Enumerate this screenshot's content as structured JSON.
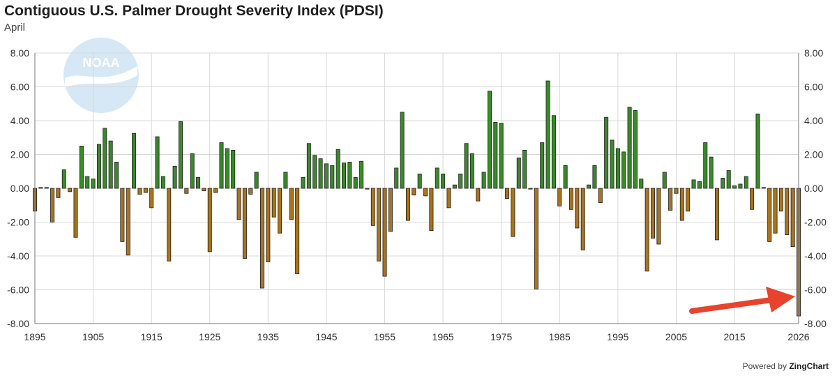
{
  "chart_data": {
    "type": "bar",
    "title": "Contiguous U.S. Palmer Drought Severity Index (PDSI)",
    "subtitle": "April",
    "ylim": [
      -8,
      8
    ],
    "y_ticks": [
      "8.00",
      "6.00",
      "4.00",
      "2.00",
      "0.00",
      "-2.00",
      "-4.00",
      "-6.00",
      "-8.00"
    ],
    "x_ticks": [
      "1895",
      "1905",
      "1915",
      "1925",
      "1935",
      "1945",
      "1955",
      "1965",
      "1975",
      "1985",
      "1995",
      "2005",
      "2015",
      "2026"
    ],
    "grid": true,
    "colors": {
      "positive": "#3a8a2a",
      "negative": "#a8741f",
      "arrow": "#e8432d",
      "logo": "#d6e8f6"
    },
    "start_year": 1895,
    "values": [
      -1.35,
      0.05,
      0.05,
      -2.0,
      -0.55,
      1.1,
      -0.2,
      -2.9,
      2.5,
      0.7,
      0.55,
      2.6,
      3.55,
      2.8,
      1.55,
      -3.15,
      -3.95,
      3.25,
      -0.35,
      -0.25,
      -1.15,
      3.05,
      0.7,
      -4.3,
      1.3,
      3.95,
      -0.3,
      2.05,
      0.65,
      -0.15,
      -3.75,
      -0.25,
      2.7,
      2.35,
      2.25,
      -1.85,
      -4.15,
      -0.35,
      0.95,
      -5.9,
      -4.35,
      -1.7,
      -2.65,
      0.95,
      -1.85,
      -5.05,
      0.65,
      2.65,
      1.95,
      1.75,
      1.45,
      1.35,
      2.3,
      1.5,
      1.55,
      0.65,
      1.6,
      -0.05,
      -2.2,
      -4.3,
      -5.2,
      -2.55,
      1.2,
      4.5,
      -1.9,
      -0.4,
      0.85,
      -0.45,
      -2.5,
      1.2,
      0.85,
      -1.15,
      0.2,
      0.85,
      2.65,
      2.05,
      -0.75,
      0.95,
      5.75,
      3.9,
      3.85,
      -0.6,
      -2.85,
      1.8,
      2.25,
      -0.05,
      -5.95,
      2.7,
      6.35,
      4.3,
      -1.05,
      1.35,
      -1.25,
      -2.35,
      -3.65,
      0.2,
      1.35,
      -0.85,
      4.2,
      2.85,
      2.35,
      2.15,
      4.8,
      4.6,
      0.55,
      -4.9,
      -2.95,
      -3.3,
      0.95,
      -1.3,
      -0.3,
      -1.9,
      -1.35,
      0.5,
      0.4,
      2.7,
      1.85,
      -3.05,
      0.6,
      1.05,
      0.15,
      0.25,
      0.7,
      -1.25,
      4.4,
      0.05,
      -3.15,
      -2.65,
      -1.35,
      -2.75,
      -3.45,
      -7.55
    ]
  },
  "footer": {
    "powered_by": "Powered by",
    "brand": "ZingChart"
  },
  "logo": {
    "text": "NOAA"
  }
}
